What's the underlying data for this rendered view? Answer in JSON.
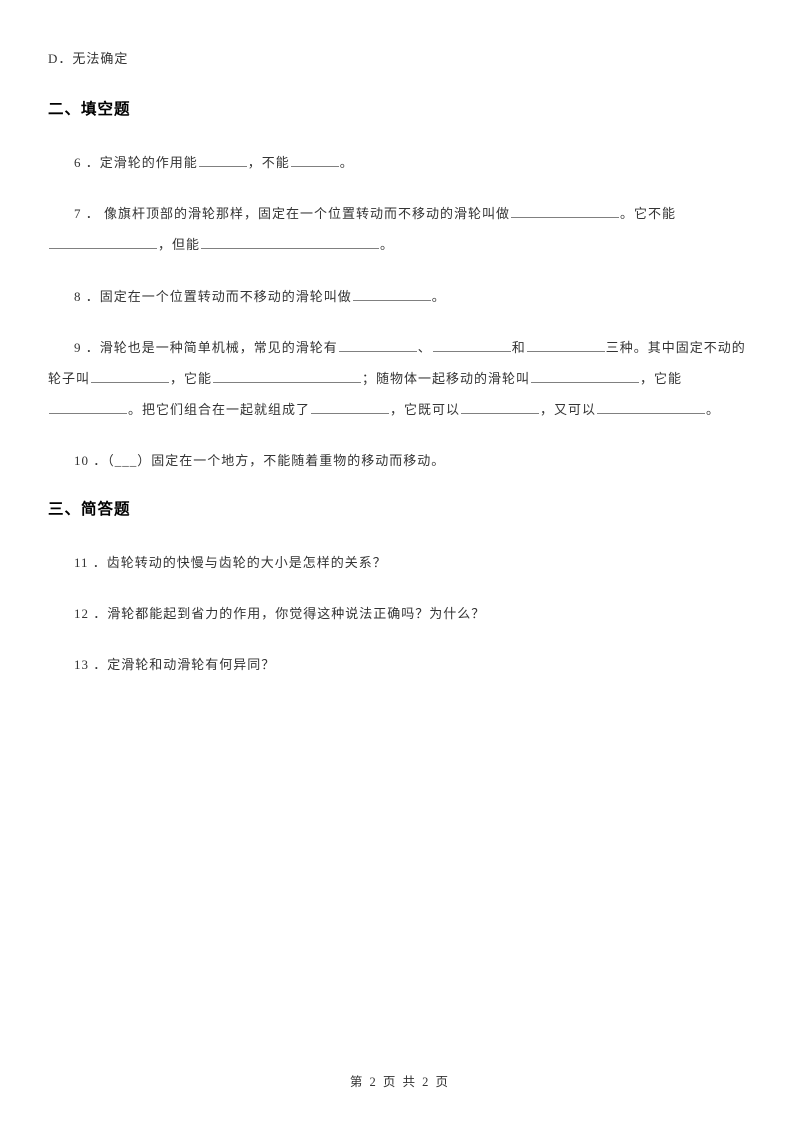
{
  "option_d": "D．无法确定",
  "section2": "二、填空题",
  "q6_a": "6 ．定滑轮的作用能",
  "q6_b": "，不能",
  "q6_c": "。",
  "q7_a": "7 ． 像旗杆顶部的滑轮那样，固定在一个位置转动而不移动的滑轮叫做",
  "q7_b": "。它不能",
  "q7_c": "，但能",
  "q7_d": "。",
  "q8_a": "8 ．固定在一个位置转动而不移动的滑轮叫做",
  "q8_b": "。",
  "q9_a": "9 ．滑轮也是一种简单机械，常见的滑轮有",
  "q9_b": "、",
  "q9_c": "和",
  "q9_d": "三种。其中固定不动的",
  "q9_e": "轮子叫",
  "q9_f": "，它能",
  "q9_g": "；随物体一起移动的滑轮叫",
  "q9_h": "，它能",
  "q9_i": "。把它们组合在一起就组成了",
  "q9_j": "，它既可以",
  "q9_k": "，又可以",
  "q9_l": "。",
  "q10": "10 ．（___）固定在一个地方，不能随着重物的移动而移动。",
  "section3": "三、简答题",
  "q11": "11 ．齿轮转动的快慢与齿轮的大小是怎样的关系？",
  "q12": "12 ．滑轮都能起到省力的作用，你觉得这种说法正确吗？为什么？",
  "q13": "13 ．定滑轮和动滑轮有何异同？",
  "footer": "第 2 页 共 2 页"
}
